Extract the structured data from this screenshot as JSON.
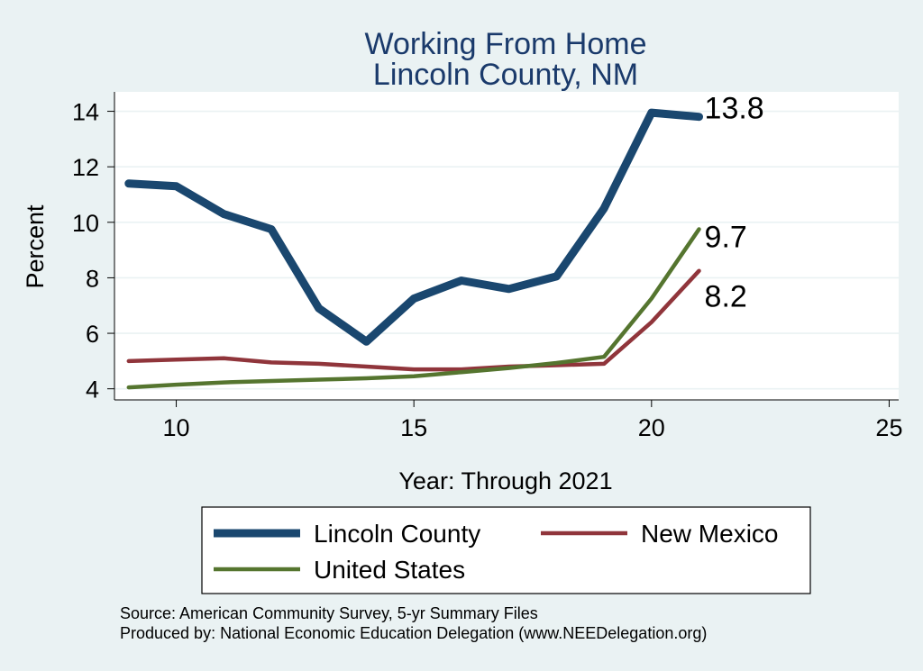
{
  "chart_data": {
    "type": "line",
    "title": "Working From Home",
    "subtitle": "Lincoln County, NM",
    "xlabel": "Year: Through 2021",
    "ylabel": "Percent",
    "xlim": [
      8.7,
      25.2
    ],
    "ylim": [
      3.6,
      14.7
    ],
    "xticks": [
      10,
      15,
      20,
      25
    ],
    "yticks": [
      4,
      6,
      8,
      10,
      12,
      14
    ],
    "grid": true,
    "legend_position": "bottom",
    "series": [
      {
        "name": "Lincoln County",
        "color": "#1a476f",
        "width": "thick",
        "x": [
          9,
          10,
          11,
          12,
          13,
          14,
          15,
          16,
          17,
          18,
          19,
          20,
          21
        ],
        "values": [
          11.4,
          11.3,
          10.3,
          9.75,
          6.9,
          5.7,
          7.25,
          7.9,
          7.6,
          8.05,
          10.5,
          13.95,
          13.8
        ],
        "end_label": "13.8"
      },
      {
        "name": "New Mexico",
        "color": "#90353b",
        "width": "medium",
        "x": [
          9,
          10,
          11,
          12,
          13,
          14,
          15,
          16,
          17,
          18,
          19,
          20,
          21
        ],
        "values": [
          5.0,
          5.05,
          5.1,
          4.95,
          4.9,
          4.8,
          4.7,
          4.7,
          4.8,
          4.85,
          4.9,
          6.4,
          8.25
        ],
        "end_label": "8.2"
      },
      {
        "name": "United States",
        "color": "#55752f",
        "width": "medium",
        "x": [
          9,
          10,
          11,
          12,
          13,
          14,
          15,
          16,
          17,
          18,
          19,
          20,
          21
        ],
        "values": [
          4.05,
          4.15,
          4.23,
          4.28,
          4.33,
          4.38,
          4.45,
          4.6,
          4.75,
          4.93,
          5.15,
          7.25,
          9.75
        ],
        "end_label": "9.7"
      }
    ],
    "notes": [
      "Source: American Community Survey, 5-yr Summary Files",
      "Produced by: National Economic Education Delegation (www.NEEDelegation.org)"
    ]
  }
}
